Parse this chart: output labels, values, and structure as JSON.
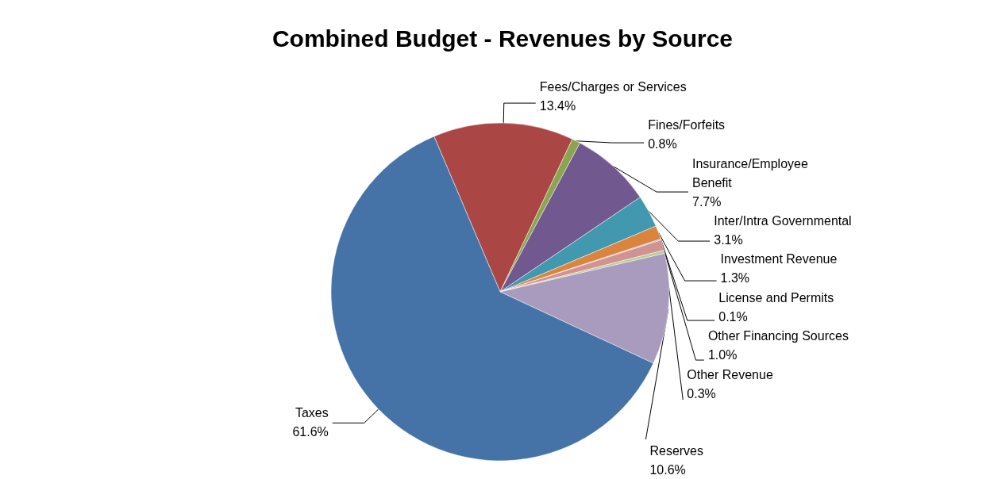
{
  "chart_data": {
    "type": "pie",
    "title": "Combined Budget - Revenues by Source",
    "categories": [
      "Fees/Charges or Services",
      "Fines/Forfeits",
      "Insurance/Employee Benefit",
      "Inter/Intra Governmental",
      "Investment Revenue",
      "License and Permits",
      "Other Financing Sources",
      "Other Revenue",
      "Reserves",
      "Taxes"
    ],
    "values": [
      13.4,
      0.8,
      7.7,
      3.1,
      1.3,
      0.1,
      1.0,
      0.3,
      10.6,
      61.6
    ],
    "value_labels": [
      "13.4%",
      "0.8%",
      "7.7%",
      "3.1%",
      "1.3%",
      "0.1%",
      "1.0%",
      "0.3%",
      "10.6%",
      "61.6%"
    ],
    "colors": [
      "#aa4643",
      "#89a54e",
      "#71588f",
      "#4198af",
      "#db843d",
      "#93a9cf",
      "#d19392",
      "#b9cd96",
      "#a99bbd",
      "#4572a7"
    ],
    "legend": false
  }
}
